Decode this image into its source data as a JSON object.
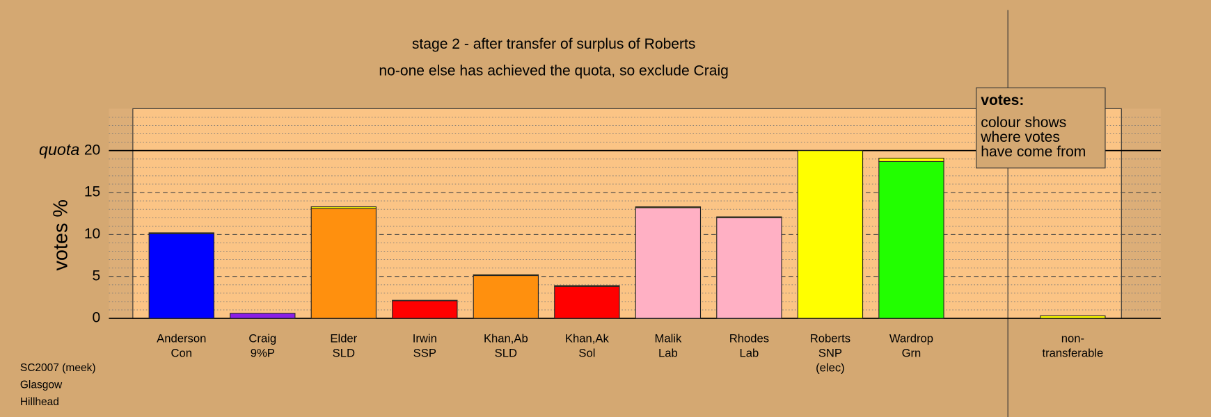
{
  "chart_data": {
    "type": "stacked_bar",
    "title": [
      "stage 2 - after transfer of surplus of Roberts",
      "no-one else has achieved the quota, so exclude Craig"
    ],
    "ylabel": "votes %",
    "quota_label": "quota",
    "quota": 20,
    "categories": [
      [
        "Anderson",
        "Con"
      ],
      [
        "Craig",
        "9%P"
      ],
      [
        "Elder",
        "SLD"
      ],
      [
        "Irwin",
        "SSP"
      ],
      [
        "Khan,Ab",
        "SLD"
      ],
      [
        "Khan,Ak",
        "Sol"
      ],
      [
        "Malik",
        "Lab"
      ],
      [
        "Rhodes",
        "Lab"
      ],
      [
        "Roberts",
        "SNP",
        "(elec)"
      ],
      [
        "Wardrop",
        "Grn"
      ],
      [
        "non-",
        "transferable"
      ]
    ],
    "series": [
      {
        "colors": [
          "#0000ff",
          "#8a1ee6",
          "#ff900e",
          "#ff0000",
          "#ff900e",
          "#ff0000",
          "#ffb0c4",
          "#ffb0c4",
          "#ffff00",
          "#22ff00",
          "#ffff00"
        ],
        "values": [
          10.1,
          0.6,
          13.1,
          2.1,
          5.1,
          3.8,
          13.2,
          12.0,
          20,
          18.7,
          0
        ]
      },
      {
        "color": "#ffff00",
        "values": [
          0.1,
          0,
          0.2,
          0.05,
          0.1,
          0.1,
          0.1,
          0.1,
          0,
          0.4,
          0.3
        ]
      }
    ],
    "ylim": [
      0,
      25
    ],
    "yticks": [
      0,
      5,
      10,
      15,
      20
    ],
    "minor_yticks": [
      1,
      2,
      3,
      4,
      6,
      7,
      8,
      9,
      11,
      12,
      13,
      14,
      16,
      17,
      18,
      19,
      21,
      22,
      23,
      24
    ],
    "legend": {
      "title": "votes:",
      "lines": [
        "colour shows",
        "where votes",
        "have come from"
      ]
    },
    "footer": [
      "SC2007 (meek)",
      "Glasgow",
      "Hillhead"
    ]
  }
}
